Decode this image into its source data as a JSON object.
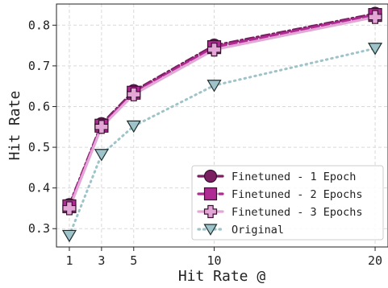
{
  "chart_data": {
    "type": "line",
    "xlabel": "Hit Rate @",
    "ylabel": "Hit Rate",
    "x": [
      1,
      3,
      5,
      10,
      20
    ],
    "x_ticks": [
      "1",
      "3",
      "5",
      "10",
      "20"
    ],
    "y_ticks": [
      "0.3",
      "0.4",
      "0.5",
      "0.6",
      "0.7",
      "0.8"
    ],
    "xlim": [
      0.2,
      20.8
    ],
    "ylim": [
      0.255,
      0.852
    ],
    "grid": true,
    "legend_position": "lower-right",
    "series": [
      {
        "name": "Finetuned - 1 Epoch",
        "values": [
          0.358,
          0.557,
          0.638,
          0.75,
          0.828
        ],
        "color": "#7b1f62",
        "marker": "circle",
        "line": "dashdot"
      },
      {
        "name": "Finetuned - 2 Epochs",
        "values": [
          0.355,
          0.553,
          0.634,
          0.746,
          0.825
        ],
        "color": "#b02a93",
        "marker": "square",
        "line": "dashed"
      },
      {
        "name": "Finetuned - 3 Epochs",
        "values": [
          0.35,
          0.55,
          0.63,
          0.74,
          0.82
        ],
        "color": "#e3a6d6",
        "marker": "plus",
        "line": "solid"
      },
      {
        "name": "Original",
        "values": [
          0.283,
          0.482,
          0.552,
          0.652,
          0.743
        ],
        "color": "#9ec3c9",
        "marker": "triangle-down",
        "line": "dotted"
      }
    ]
  }
}
